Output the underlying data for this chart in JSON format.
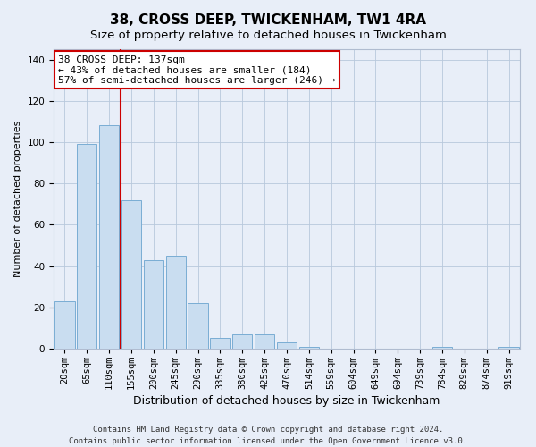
{
  "title": "38, CROSS DEEP, TWICKENHAM, TW1 4RA",
  "subtitle": "Size of property relative to detached houses in Twickenham",
  "xlabel": "Distribution of detached houses by size in Twickenham",
  "ylabel": "Number of detached properties",
  "categories": [
    "20sqm",
    "65sqm",
    "110sqm",
    "155sqm",
    "200sqm",
    "245sqm",
    "290sqm",
    "335sqm",
    "380sqm",
    "425sqm",
    "470sqm",
    "514sqm",
    "559sqm",
    "604sqm",
    "649sqm",
    "694sqm",
    "739sqm",
    "784sqm",
    "829sqm",
    "874sqm",
    "919sqm"
  ],
  "values": [
    23,
    99,
    108,
    72,
    43,
    45,
    22,
    5,
    7,
    7,
    3,
    1,
    0,
    0,
    0,
    0,
    0,
    1,
    0,
    0,
    1
  ],
  "bar_facecolor": "#c9ddf0",
  "bar_edgecolor": "#7aadd4",
  "redline_x": 2.5,
  "annotation_line1": "38 CROSS DEEP: 137sqm",
  "annotation_line2": "← 43% of detached houses are smaller (184)",
  "annotation_line3": "57% of semi-detached houses are larger (246) →",
  "annotation_box_facecolor": "#ffffff",
  "annotation_box_edgecolor": "#cc0000",
  "ylim": [
    0,
    145
  ],
  "yticks": [
    0,
    20,
    40,
    60,
    80,
    100,
    120,
    140
  ],
  "background_color": "#e8eef8",
  "plot_background": "#e8eef8",
  "footer_line1": "Contains HM Land Registry data © Crown copyright and database right 2024.",
  "footer_line2": "Contains public sector information licensed under the Open Government Licence v3.0.",
  "title_fontsize": 11,
  "subtitle_fontsize": 9.5,
  "xlabel_fontsize": 9,
  "ylabel_fontsize": 8,
  "tick_fontsize": 7.5,
  "annotation_fontsize": 8,
  "footer_fontsize": 6.5
}
